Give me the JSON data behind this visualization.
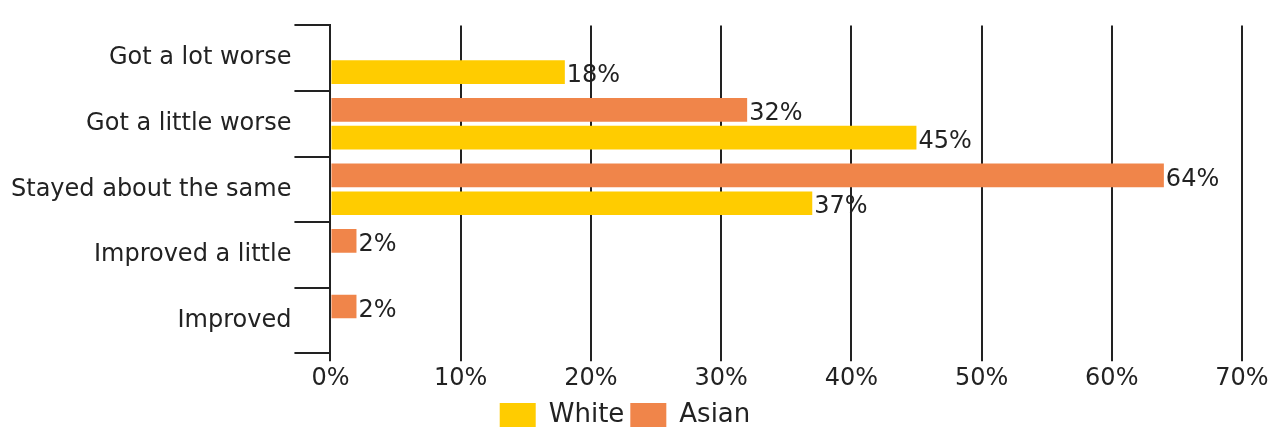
{
  "chart_data": {
    "type": "bar",
    "orientation": "horizontal",
    "categories": [
      "Got a lot worse",
      "Got a little worse",
      "Stayed about the same",
      "Improved a little",
      "Improved"
    ],
    "series": [
      {
        "name": "White",
        "color": "#ffcc00",
        "values": [
          18,
          45,
          37,
          null,
          null
        ],
        "value_labels": [
          "18%",
          "45%",
          "37%",
          null,
          null
        ]
      },
      {
        "name": "Asian",
        "color": "#f0854a",
        "values": [
          null,
          32,
          64,
          2,
          2
        ],
        "value_labels": [
          null,
          "32%",
          "64%",
          "2%",
          "2%"
        ]
      }
    ],
    "xlim": [
      0,
      70
    ],
    "xticks": [
      {
        "value": 0,
        "label": "0%"
      },
      {
        "value": 10,
        "label": "10%"
      },
      {
        "value": 20,
        "label": "20%"
      },
      {
        "value": 30,
        "label": "30%"
      },
      {
        "value": 40,
        "label": "40%"
      },
      {
        "value": 50,
        "label": "50%"
      },
      {
        "value": 60,
        "label": "60%"
      },
      {
        "value": 70,
        "label": "70%"
      }
    ],
    "grid": "x",
    "legend": "bottom"
  }
}
